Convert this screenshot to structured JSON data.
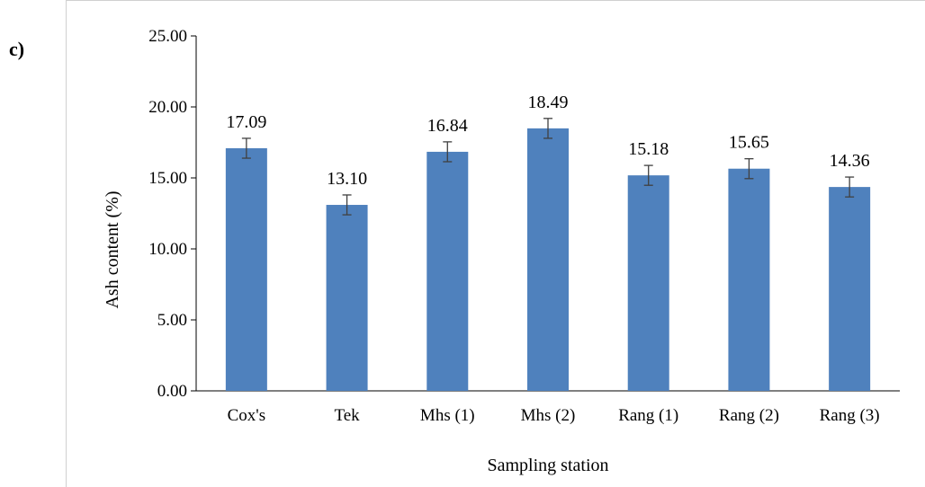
{
  "panel_label": "c)",
  "chart_data": {
    "type": "bar",
    "xlabel": "Sampling station",
    "ylabel": "Ash content (%)",
    "categories": [
      "Cox's",
      "Tek",
      "Mhs (1)",
      "Mhs (2)",
      "Rang (1)",
      "Rang (2)",
      "Rang (3)"
    ],
    "values": [
      17.09,
      13.1,
      16.84,
      18.49,
      15.18,
      15.65,
      14.36
    ],
    "value_labels": [
      "17.09",
      "13.10",
      "16.84",
      "18.49",
      "15.18",
      "15.65",
      "14.36"
    ],
    "error": [
      0.7,
      0.7,
      0.7,
      0.7,
      0.7,
      0.7,
      0.7
    ],
    "ylim": [
      0,
      25
    ],
    "yticks": [
      "0.00",
      "5.00",
      "10.00",
      "15.00",
      "20.00",
      "25.00"
    ],
    "bar_color": "#4f81bd",
    "error_color": "#404040",
    "grid": false,
    "legend": "none"
  }
}
